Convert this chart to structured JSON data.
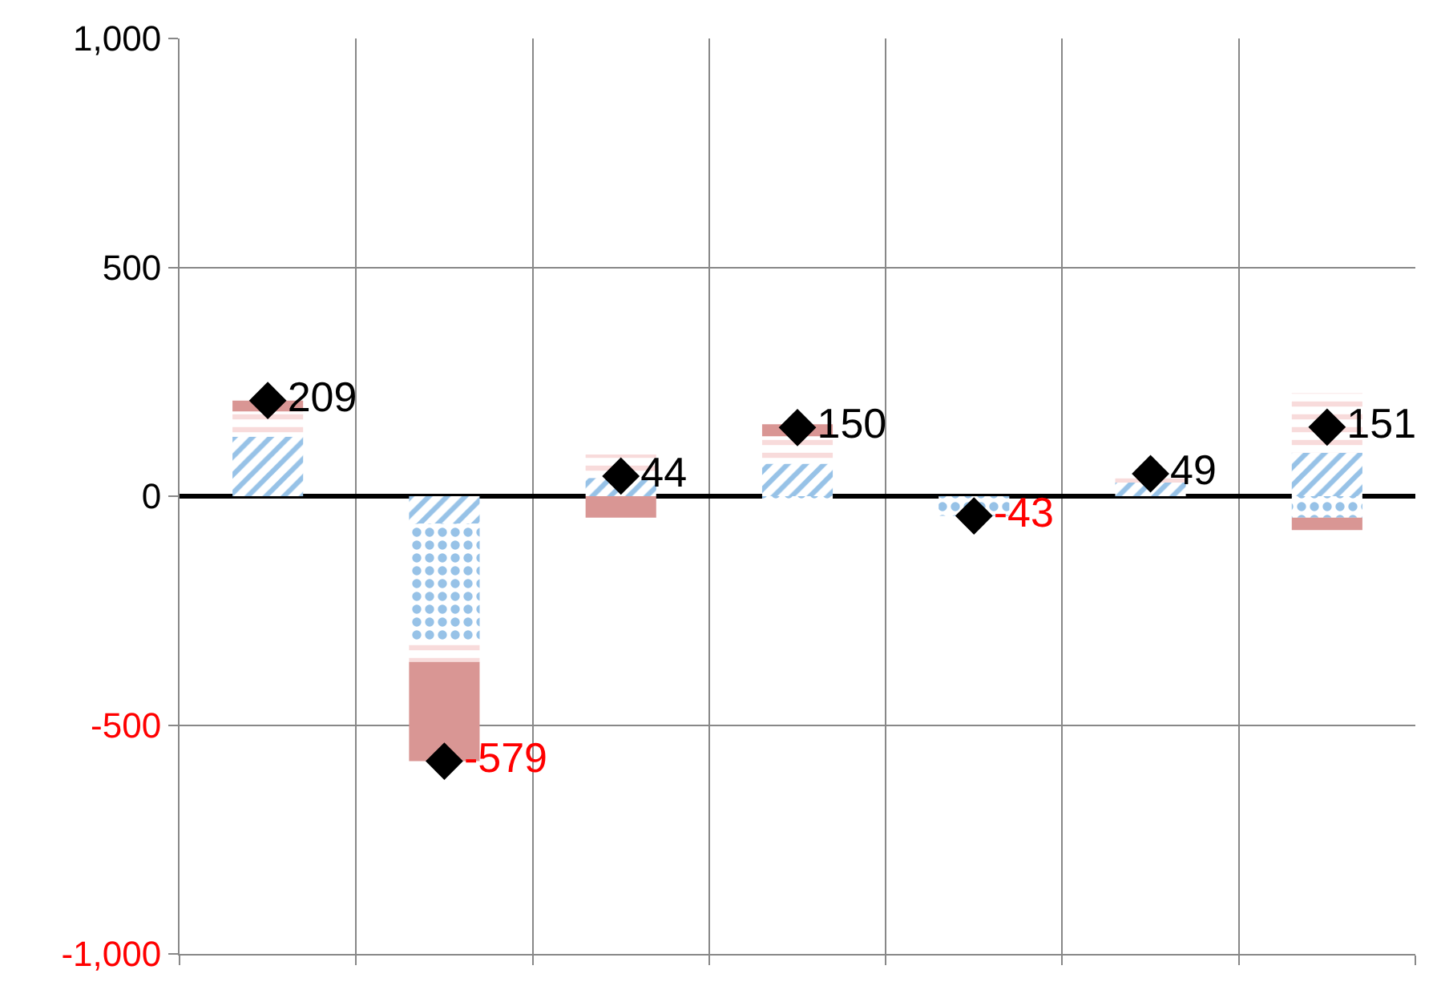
{
  "chart_data": {
    "type": "bar",
    "stacked": true,
    "categories": [
      null,
      null,
      null,
      null,
      null,
      null,
      null
    ],
    "series": [
      {
        "color": "#2f86d0",
        "values": [
          130,
          -60,
          40,
          71,
          0,
          30,
          95
        ]
      },
      {
        "color": "#2f86d0",
        "values": [
          0,
          -258,
          0,
          -7,
          -43,
          0,
          -47
        ]
      },
      {
        "color": "#f2b8b8",
        "values": [
          55,
          -44,
          51,
          60,
          0,
          19,
          130
        ]
      },
      {
        "color": "#d99694",
        "values": [
          24,
          -217,
          -47,
          26,
          0,
          0,
          -27
        ]
      },
      {
        "type": "scatter",
        "color": "#000000",
        "marker": "diamond",
        "values": [
          209,
          -579,
          44,
          150,
          -43,
          49,
          151
        ],
        "data_labels": true
      }
    ],
    "ylim": [
      -1000,
      1000
    ],
    "yticks": [
      {
        "value": -1000,
        "label": "-1,000"
      },
      -500,
      0,
      500,
      {
        "value": 1000,
        "label": "1,000"
      }
    ],
    "grid": true,
    "tick_labels": "y"
  }
}
